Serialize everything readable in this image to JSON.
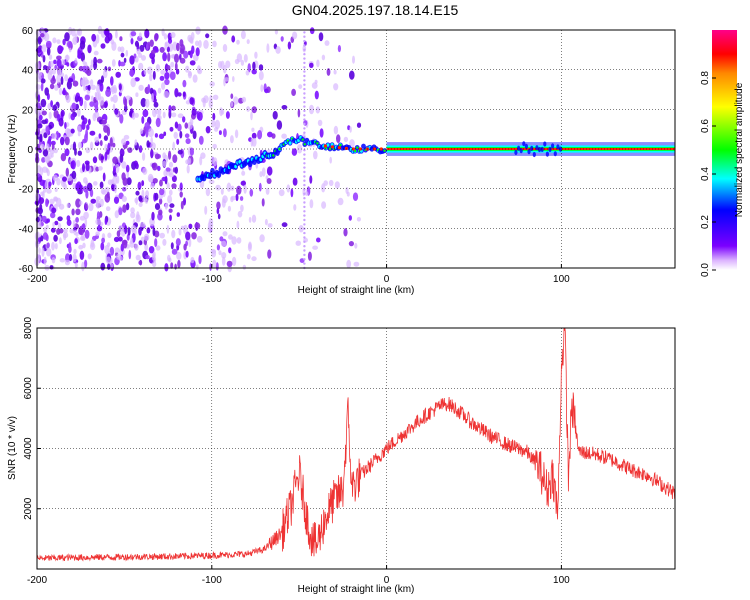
{
  "title": "GN04.2025.197.18.14.E15",
  "chart_data": [
    {
      "type": "heatmap",
      "xlabel": "Height of straight line (km)",
      "ylabel": "Frequency (Hz)",
      "xlim": [
        -200,
        165
      ],
      "ylim": [
        -60,
        60
      ],
      "x_ticks": [
        -200,
        -100,
        0,
        100
      ],
      "y_ticks": [
        -60,
        -40,
        -20,
        0,
        20,
        40,
        60
      ],
      "grid": true,
      "colorbar": {
        "label": "Normalized spectral amplitude",
        "range": [
          0.0,
          1.0
        ],
        "ticks": [
          0.0,
          0.2,
          0.4,
          0.6,
          0.8
        ],
        "colormap": [
          "#ffffff",
          "#7b00ff",
          "#0000ff",
          "#00ffff",
          "#00ff00",
          "#ffff00",
          "#ff0000",
          "#ff0088"
        ]
      },
      "ridge": {
        "x": [
          -108,
          -95,
          -85,
          -75,
          -65,
          -58,
          -52,
          -48,
          -40,
          -30,
          -20,
          0,
          75,
          85,
          95,
          100,
          165
        ],
        "y": [
          -15,
          -11,
          -8,
          -5,
          -2,
          2,
          5,
          4,
          2,
          1,
          0,
          0,
          0,
          0,
          0,
          2,
          0
        ]
      },
      "noise_region": {
        "x_start": -200,
        "x_end": -45
      }
    },
    {
      "type": "line",
      "xlabel": "Height of straight line (km)",
      "ylabel": "SNR (10 * v/v)",
      "xlim": [
        -200,
        165
      ],
      "ylim": [
        0,
        8000
      ],
      "x_ticks": [
        -200,
        -100,
        0,
        100
      ],
      "y_ticks": [
        2000,
        4000,
        6000,
        8000
      ],
      "grid": true,
      "color": "#ee3333",
      "series": [
        {
          "x": [
            -200,
            -180,
            -150,
            -120,
            -100,
            -80,
            -70,
            -60,
            -55,
            -50,
            -45,
            -42,
            -40,
            -35,
            -30,
            -25,
            -22,
            -20,
            -15,
            -10,
            0,
            10,
            20,
            30,
            35,
            40,
            50,
            60,
            70,
            80,
            88,
            92,
            95,
            98,
            100,
            102,
            104,
            106,
            110,
            120,
            130,
            140,
            150,
            165
          ],
          "y": [
            350,
            380,
            400,
            420,
            450,
            500,
            650,
            1200,
            2000,
            3200,
            1500,
            900,
            800,
            1700,
            2300,
            2600,
            5200,
            2700,
            3100,
            3400,
            4000,
            4500,
            5000,
            5400,
            5500,
            5300,
            4800,
            4400,
            4100,
            3900,
            3300,
            2600,
            3200,
            1800,
            6700,
            8000,
            3000,
            5500,
            3900,
            3800,
            3600,
            3300,
            3100,
            2500
          ]
        }
      ]
    }
  ]
}
